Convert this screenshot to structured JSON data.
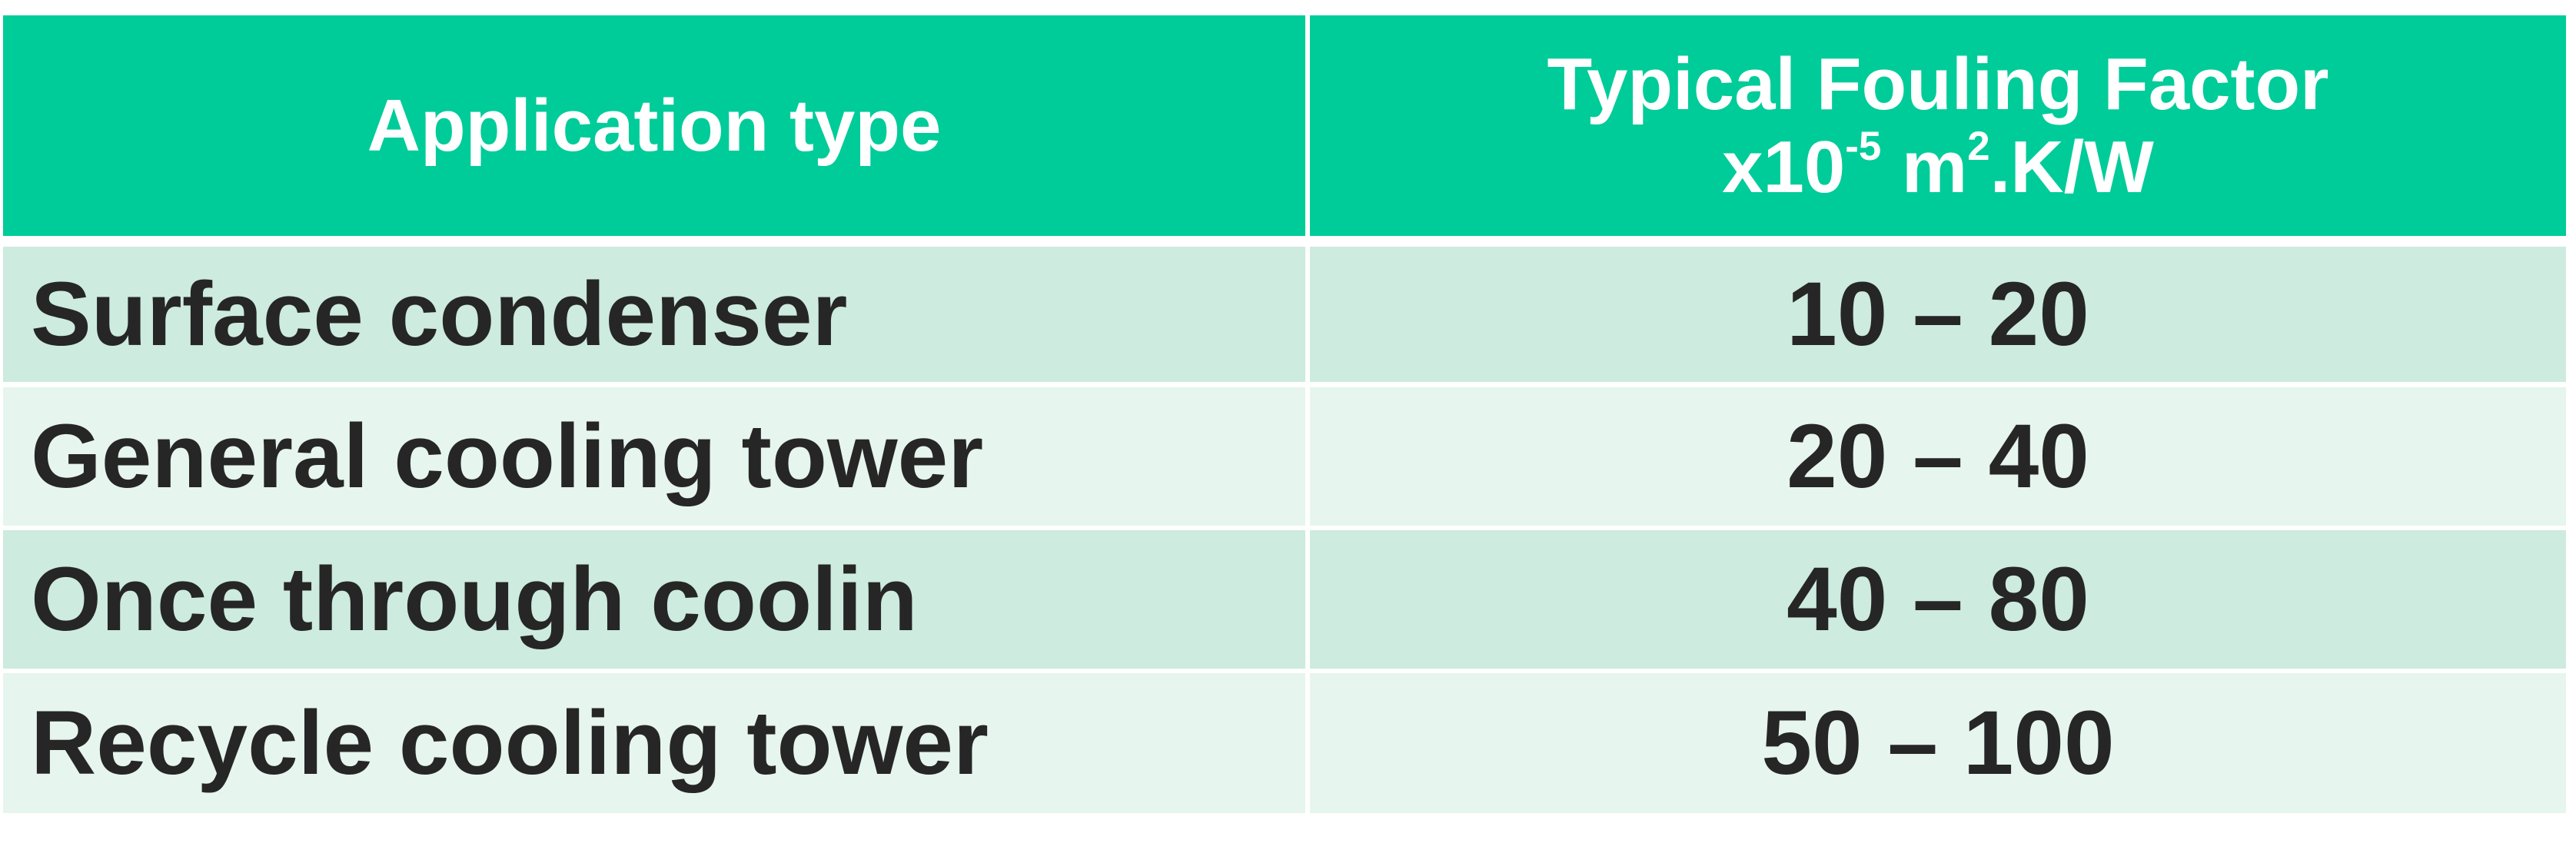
{
  "table": {
    "header": {
      "application_type": "Application type",
      "fouling_title": "Typical Fouling Factor",
      "unit_prefix": "x10",
      "unit_exp": "-5",
      "unit_m": " m",
      "unit_m_exp": "2",
      "unit_suffix": ".K/W"
    },
    "rows": [
      {
        "application": "Surface condenser",
        "factor": "10 – 20"
      },
      {
        "application": "General cooling tower",
        "factor": "20 – 40"
      },
      {
        "application": "Once through coolin",
        "factor": "40 – 80"
      },
      {
        "application": "Recycle cooling tower",
        "factor": "50 – 100"
      }
    ],
    "colors": {
      "header": "#00cc99",
      "row_dark": "#cdebdf",
      "row_light": "#e6f5ee",
      "text": "#262626"
    }
  }
}
